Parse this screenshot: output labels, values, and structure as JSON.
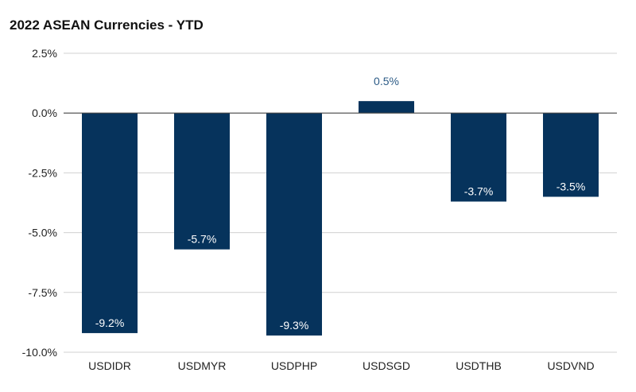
{
  "title": "2022 ASEAN Currencies - YTD",
  "chart_data": {
    "type": "bar",
    "title": "2022 ASEAN Currencies - YTD",
    "categories": [
      "USDIDR",
      "USDMYR",
      "USDPHP",
      "USDSGD",
      "USDTHB",
      "USDVND"
    ],
    "values": [
      -9.2,
      -5.7,
      -9.3,
      0.5,
      -3.7,
      -3.5
    ],
    "data_labels": [
      "-9.2%",
      "-5.7%",
      "-9.3%",
      "0.5%",
      "-3.7%",
      "-3.5%"
    ],
    "ylim": [
      -10,
      2.5
    ],
    "yticks": [
      2.5,
      0,
      -2.5,
      -5,
      -7.5,
      -10
    ],
    "ytick_labels": [
      "2.5%",
      "0.0%",
      "-2.5%",
      "-5.0%",
      "-7.5%",
      "-10.0%"
    ],
    "grid": true,
    "legend": "none",
    "colors": {
      "bar": "#06335c",
      "label_inside": "#ffffff",
      "label_outside": "#2c5b86",
      "grid": "#d0d0d0",
      "zero_line": "#444444"
    }
  }
}
